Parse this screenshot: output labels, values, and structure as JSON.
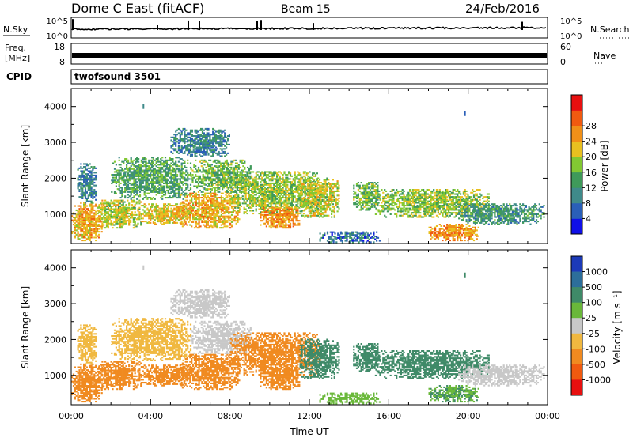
{
  "header": {
    "station": "Dome C East (fitACF)",
    "beam": "Beam 15",
    "date": "24/Feb/2016"
  },
  "noise_panel": {
    "left_label": "N.Sky",
    "right_label": "N.Search",
    "y_ticks": [
      "10^5",
      "10^0"
    ]
  },
  "freq_panel": {
    "left_label_line1": "Freq.",
    "left_label_line2": "[MHz]",
    "left_ticks": [
      "18",
      "8"
    ],
    "right_label": "Nave",
    "right_ticks": [
      "60",
      "0"
    ]
  },
  "cpid_panel": {
    "label": "CPID",
    "value": "twofsound 3501"
  },
  "chart_data": [
    {
      "type": "heatmap",
      "title": "",
      "quantity": "Power",
      "ylabel": "Slant Range [km]",
      "xlabel": "",
      "x_unit": "hours UT",
      "xlim": [
        0,
        24
      ],
      "ylim": [
        180,
        4500
      ],
      "y_ticks": [
        1000,
        2000,
        3000,
        4000
      ],
      "colorbar": {
        "label": "Power [dB]",
        "ticks": [
          "4",
          "8",
          "12",
          "16",
          "20",
          "24",
          "28"
        ],
        "colors": [
          "#1010e8",
          "#2a5fb8",
          "#3f8a8a",
          "#3f9a5a",
          "#82c832",
          "#e8c020",
          "#f09018",
          "#f05a10",
          "#e81010"
        ]
      },
      "echo_regions": [
        {
          "t0": 0.0,
          "t1": 1.5,
          "r0": 250,
          "r1": 1300,
          "v": 24
        },
        {
          "t0": 0.3,
          "t1": 1.2,
          "r0": 1300,
          "r1": 2400,
          "v": 10
        },
        {
          "t0": 1.3,
          "t1": 3.5,
          "r0": 600,
          "r1": 1400,
          "v": 20
        },
        {
          "t0": 2.0,
          "t1": 6.0,
          "r0": 1400,
          "r1": 2600,
          "v": 14
        },
        {
          "t0": 3.5,
          "t1": 6.0,
          "r0": 700,
          "r1": 1300,
          "v": 22
        },
        {
          "t0": 5.0,
          "t1": 8.0,
          "r0": 2600,
          "r1": 3400,
          "v": 10
        },
        {
          "t0": 5.5,
          "t1": 8.5,
          "r0": 600,
          "r1": 1600,
          "v": 24
        },
        {
          "t0": 6.0,
          "t1": 9.0,
          "r0": 1600,
          "r1": 2500,
          "v": 16
        },
        {
          "t0": 8.0,
          "t1": 12.5,
          "r0": 1000,
          "r1": 2200,
          "v": 18
        },
        {
          "t0": 9.5,
          "t1": 11.5,
          "r0": 600,
          "r1": 1200,
          "v": 26
        },
        {
          "t0": 11.5,
          "t1": 13.5,
          "r0": 900,
          "r1": 2000,
          "v": 20
        },
        {
          "t0": 12.5,
          "t1": 15.5,
          "r0": 200,
          "r1": 500,
          "v": 8
        },
        {
          "t0": 14.2,
          "t1": 15.5,
          "r0": 1100,
          "r1": 1900,
          "v": 16
        },
        {
          "t0": 15.3,
          "t1": 21.0,
          "r0": 900,
          "r1": 1700,
          "v": 18
        },
        {
          "t0": 18.0,
          "t1": 20.5,
          "r0": 250,
          "r1": 700,
          "v": 26
        },
        {
          "t0": 19.5,
          "t1": 23.8,
          "r0": 700,
          "r1": 1300,
          "v": 12
        }
      ],
      "isolated_points": [
        {
          "t": 3.6,
          "r": 4000,
          "v": 10
        },
        {
          "t": 19.8,
          "r": 3800,
          "v": 6
        }
      ]
    },
    {
      "type": "heatmap",
      "title": "",
      "quantity": "Velocity",
      "ylabel": "Slant Range [km]",
      "xlabel": "Time UT",
      "x_unit": "hours UT",
      "xlim": [
        0,
        24
      ],
      "ylim": [
        180,
        4500
      ],
      "y_ticks": [
        1000,
        2000,
        3000,
        4000
      ],
      "x_ticks": [
        "00:00",
        "04:00",
        "08:00",
        "12:00",
        "16:00",
        "20:00",
        "00:00"
      ],
      "colorbar": {
        "label": "Velocity [m s⁻¹]",
        "ticks": [
          "1000",
          "500",
          "100",
          "25",
          "-25",
          "-100",
          "-500",
          "-1000"
        ],
        "colors": [
          "#1c3ab8",
          "#2c6e9a",
          "#3f8a68",
          "#6ab83a",
          "#c8c8c8",
          "#f0b840",
          "#f08a20",
          "#f05a10",
          "#e81010"
        ]
      },
      "echo_regions": [
        {
          "t0": 0.0,
          "t1": 1.5,
          "r0": 250,
          "r1": 1300,
          "v": -200
        },
        {
          "t0": 0.3,
          "t1": 1.2,
          "r0": 1300,
          "r1": 2400,
          "v": -60
        },
        {
          "t0": 1.3,
          "t1": 3.5,
          "r0": 600,
          "r1": 1400,
          "v": -250
        },
        {
          "t0": 2.0,
          "t1": 6.0,
          "r0": 1400,
          "r1": 2600,
          "v": -60
        },
        {
          "t0": 3.5,
          "t1": 6.0,
          "r0": 700,
          "r1": 1300,
          "v": -200
        },
        {
          "t0": 5.0,
          "t1": 8.0,
          "r0": 2600,
          "r1": 3400,
          "v": 0
        },
        {
          "t0": 5.5,
          "t1": 8.5,
          "r0": 600,
          "r1": 1600,
          "v": -250
        },
        {
          "t0": 6.0,
          "t1": 9.0,
          "r0": 1600,
          "r1": 2500,
          "v": 0
        },
        {
          "t0": 8.0,
          "t1": 12.5,
          "r0": 1000,
          "r1": 2200,
          "v": -300
        },
        {
          "t0": 9.5,
          "t1": 11.5,
          "r0": 600,
          "r1": 1200,
          "v": -300
        },
        {
          "t0": 11.5,
          "t1": 13.5,
          "r0": 900,
          "r1": 2000,
          "v": 150
        },
        {
          "t0": 12.5,
          "t1": 15.5,
          "r0": 200,
          "r1": 500,
          "v": 60
        },
        {
          "t0": 14.2,
          "t1": 15.5,
          "r0": 1100,
          "r1": 1900,
          "v": 300
        },
        {
          "t0": 15.3,
          "t1": 21.0,
          "r0": 900,
          "r1": 1700,
          "v": 200
        },
        {
          "t0": 18.0,
          "t1": 20.5,
          "r0": 250,
          "r1": 700,
          "v": 100
        },
        {
          "t0": 19.5,
          "t1": 23.8,
          "r0": 700,
          "r1": 1300,
          "v": 0
        }
      ],
      "isolated_points": [
        {
          "t": 3.6,
          "r": 4000,
          "v": 0
        },
        {
          "t": 19.8,
          "r": 3800,
          "v": 300
        }
      ]
    }
  ]
}
